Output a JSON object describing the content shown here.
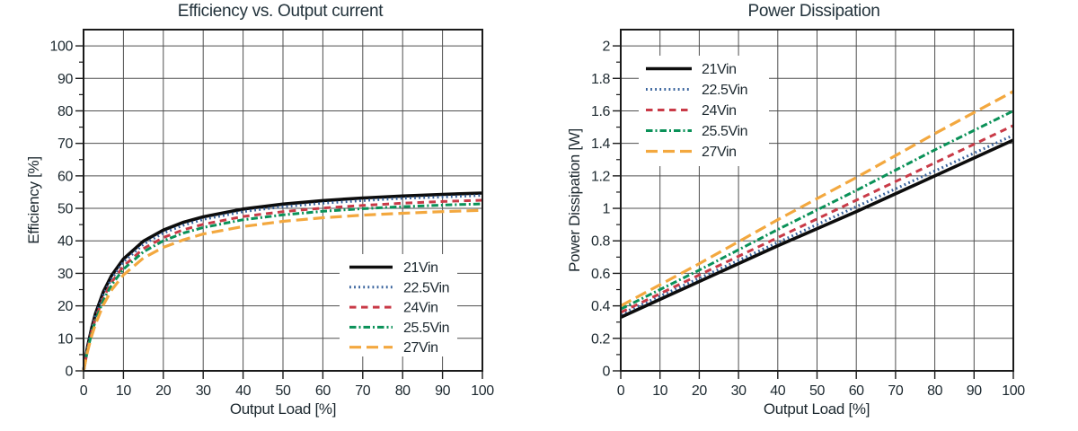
{
  "page": {
    "background": "#ffffff"
  },
  "colors": {
    "text": "#1c282f",
    "title": "#22323b",
    "grid": "#4f4f4f",
    "frame": "#1a1a1a",
    "legend_background": "#ffffff"
  },
  "chart_data": [
    {
      "type": "line",
      "title": "Efficiency vs. Output current",
      "xlabel": "Output Load [%]",
      "ylabel": "Efficiency [%]",
      "xlim": [
        0,
        100
      ],
      "ylim": [
        0,
        105
      ],
      "grid": true,
      "legend_position": "bottom-right",
      "x_ticks": [
        0,
        10,
        20,
        30,
        40,
        50,
        60,
        70,
        80,
        90,
        100
      ],
      "x_tick_labels": [
        "0",
        "10",
        "20",
        "30",
        "40",
        "50",
        "60",
        "70",
        "80",
        "90",
        "100"
      ],
      "y_ticks": [
        0,
        10,
        20,
        30,
        40,
        50,
        60,
        70,
        80,
        90,
        100
      ],
      "y_tick_labels": [
        "0",
        "10",
        "20",
        "30",
        "40",
        "50",
        "60",
        "70",
        "80",
        "90",
        "100"
      ],
      "x": [
        0,
        1,
        2,
        3,
        5,
        7,
        10,
        15,
        20,
        25,
        30,
        40,
        50,
        60,
        70,
        80,
        90,
        100
      ],
      "series": [
        {
          "name": "21Vin",
          "color": "#0d0d0d",
          "style": "solid",
          "values": [
            0,
            7.3,
            13,
            17.6,
            24.4,
            29.3,
            34.4,
            39.9,
            43.3,
            45.7,
            47.4,
            49.8,
            51.3,
            52.4,
            53.2,
            53.8,
            54.3,
            54.7
          ]
        },
        {
          "name": "22.5Vin",
          "color": "#35609b",
          "style": "dotted",
          "values": [
            0,
            7,
            12.5,
            16.9,
            23.5,
            28.3,
            33.5,
            38.9,
            42.4,
            44.8,
            46.6,
            49,
            50.5,
            51.6,
            52.4,
            53.1,
            53.5,
            54
          ]
        },
        {
          "name": "24Vin",
          "color": "#c93a47",
          "style": "dashed",
          "values": [
            0,
            6.6,
            11.9,
            16.1,
            22.6,
            27.2,
            32.2,
            37.6,
            41,
            43.4,
            45.1,
            47.5,
            49,
            50.1,
            50.9,
            51.6,
            52.1,
            52.5
          ]
        },
        {
          "name": "25.5Vin",
          "color": "#0a9158",
          "style": "dashdot",
          "values": [
            0,
            6.4,
            11.4,
            15.5,
            21.8,
            26.4,
            31.3,
            36.6,
            40,
            42.4,
            44.1,
            46.5,
            48,
            49.1,
            49.9,
            50.5,
            51,
            51.4
          ]
        },
        {
          "name": "27Vin",
          "color": "#f3a83f",
          "style": "longdash",
          "values": [
            0,
            5.9,
            10.6,
            14.4,
            20.4,
            24.8,
            29.5,
            34.7,
            38,
            40.3,
            42.1,
            44.4,
            46,
            47.1,
            47.9,
            48.5,
            49,
            49.4
          ]
        }
      ]
    },
    {
      "type": "line",
      "title": "Power Dissipation",
      "xlabel": "Output Load [%]",
      "ylabel": "Power Dissipation [W]",
      "xlim": [
        0,
        100
      ],
      "ylim": [
        0,
        2.1
      ],
      "grid": true,
      "legend_position": "top-left",
      "x_ticks": [
        0,
        10,
        20,
        30,
        40,
        50,
        60,
        70,
        80,
        90,
        100
      ],
      "x_tick_labels": [
        "0",
        "10",
        "20",
        "30",
        "40",
        "50",
        "60",
        "70",
        "80",
        "90",
        "100"
      ],
      "y_ticks": [
        0,
        0.2,
        0.4,
        0.6,
        0.8,
        1,
        1.2,
        1.4,
        1.6,
        1.8,
        2
      ],
      "y_tick_labels": [
        "0",
        "0.2",
        "0.4",
        "0.6",
        "0.8",
        "1",
        "1.2",
        "1.4",
        "1.6",
        "1.8",
        "2"
      ],
      "x": [
        0,
        20,
        40,
        60,
        80,
        100
      ],
      "series": [
        {
          "name": "21Vin",
          "color": "#0d0d0d",
          "style": "solid",
          "values": [
            0.33,
            0.55,
            0.77,
            0.98,
            1.2,
            1.42
          ]
        },
        {
          "name": "22.5Vin",
          "color": "#35609b",
          "style": "dotted",
          "values": [
            0.35,
            0.57,
            0.79,
            1.01,
            1.23,
            1.45
          ]
        },
        {
          "name": "24Vin",
          "color": "#c93a47",
          "style": "dashed",
          "values": [
            0.36,
            0.59,
            0.82,
            1.05,
            1.28,
            1.51
          ]
        },
        {
          "name": "25.5Vin",
          "color": "#0a9158",
          "style": "dashdot",
          "values": [
            0.38,
            0.62,
            0.87,
            1.11,
            1.36,
            1.6
          ]
        },
        {
          "name": "27Vin",
          "color": "#f3a83f",
          "style": "longdash",
          "values": [
            0.4,
            0.66,
            0.93,
            1.19,
            1.46,
            1.72
          ]
        }
      ]
    }
  ]
}
